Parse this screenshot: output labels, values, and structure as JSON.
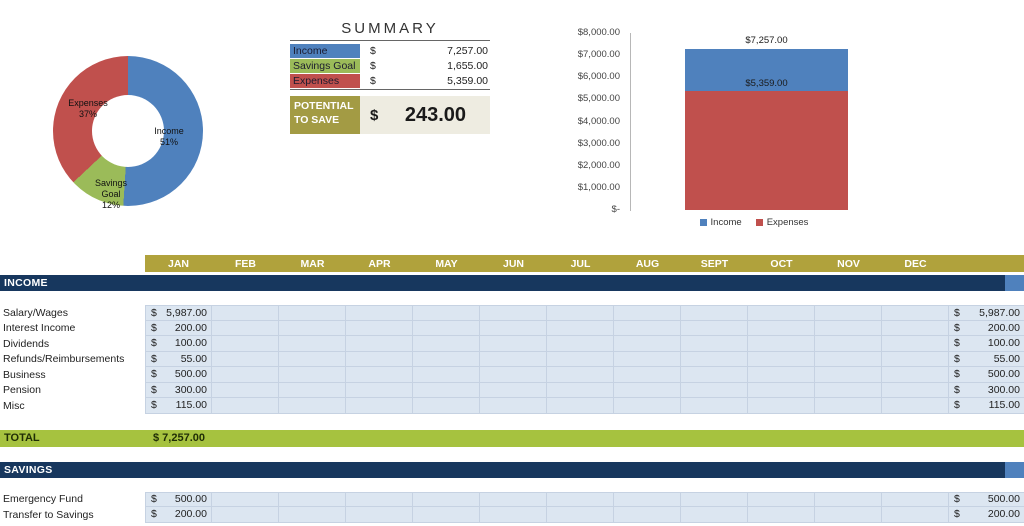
{
  "meta": {
    "currency": "$"
  },
  "summary": {
    "title": "SUMMARY",
    "rows": [
      {
        "label": "Income",
        "value": "7,257.00"
      },
      {
        "label": "Savings Goal",
        "value": "1,655.00"
      },
      {
        "label": "Expenses",
        "value": "5,359.00"
      }
    ],
    "potential": {
      "label": "POTENTIAL TO SAVE",
      "value": "243.00"
    }
  },
  "donut": {
    "segments": [
      {
        "name": "Income",
        "pct": "51%"
      },
      {
        "name": "Savings Goal",
        "pct": "12%"
      },
      {
        "name": "Expenses",
        "pct": "37%"
      }
    ]
  },
  "bar": {
    "ticks": [
      "$8,000.00",
      "$7,000.00",
      "$6,000.00",
      "$5,000.00",
      "$4,000.00",
      "$3,000.00",
      "$2,000.00",
      "$1,000.00",
      "$-"
    ],
    "top_label": "$7,257.00",
    "mid_label": "$5,359.00",
    "legend": [
      {
        "name": "Income"
      },
      {
        "name": "Expenses"
      }
    ]
  },
  "months": [
    "JAN",
    "FEB",
    "MAR",
    "APR",
    "MAY",
    "JUN",
    "JUL",
    "AUG",
    "SEPT",
    "OCT",
    "NOV",
    "DEC"
  ],
  "income": {
    "title": "INCOME",
    "rows": [
      {
        "label": "Salary/Wages",
        "jan": "5,987.00",
        "total": "5,987.00"
      },
      {
        "label": "Interest Income",
        "jan": "200.00",
        "total": "200.00"
      },
      {
        "label": "Dividends",
        "jan": "100.00",
        "total": "100.00"
      },
      {
        "label": "Refunds/Reimbursements",
        "jan": "55.00",
        "total": "55.00"
      },
      {
        "label": "Business",
        "jan": "500.00",
        "total": "500.00"
      },
      {
        "label": "Pension",
        "jan": "300.00",
        "total": "300.00"
      },
      {
        "label": "Misc",
        "jan": "115.00",
        "total": "115.00"
      }
    ],
    "total_row": {
      "label": "TOTAL",
      "jan": "$ 7,257.00"
    }
  },
  "savings": {
    "title": "SAVINGS",
    "rows": [
      {
        "label": "Emergency Fund",
        "jan": "500.00",
        "total": "500.00"
      },
      {
        "label": "Transfer to Savings",
        "jan": "200.00",
        "total": "200.00"
      }
    ]
  },
  "colors": {
    "income_blue": "#4f81bd",
    "expenses_red": "#c0504d",
    "savings_green": "#9bbb59",
    "band_gold": "#b0a23c",
    "header_navy": "#17375e",
    "total_green": "#a6c23f",
    "row_blue": "#dce6f1",
    "potential_gold": "#a39b44",
    "potential_beige": "#eeece1"
  },
  "chart_data": [
    {
      "type": "pie",
      "subtype": "donut",
      "labels": [
        "Income",
        "Savings Goal",
        "Expenses"
      ],
      "values": [
        51,
        12,
        37
      ],
      "unit": "%",
      "colors": [
        "#4f81bd",
        "#9bbb59",
        "#c0504d"
      ],
      "legend_position": "none"
    },
    {
      "type": "bar",
      "subtype": "stacked-column",
      "categories": [
        ""
      ],
      "series": [
        {
          "name": "Income",
          "values": [
            7257
          ],
          "color": "#4f81bd",
          "data_label": "$7,257.00"
        },
        {
          "name": "Expenses",
          "values": [
            5359
          ],
          "color": "#c0504d",
          "data_label": "$5,359.00"
        }
      ],
      "ylim": [
        0,
        8000
      ],
      "ytick_labels": [
        "$8,000.00",
        "$7,000.00",
        "$6,000.00",
        "$5,000.00",
        "$4,000.00",
        "$3,000.00",
        "$2,000.00",
        "$1,000.00",
        "$-"
      ],
      "grid": false,
      "legend_position": "bottom"
    }
  ]
}
